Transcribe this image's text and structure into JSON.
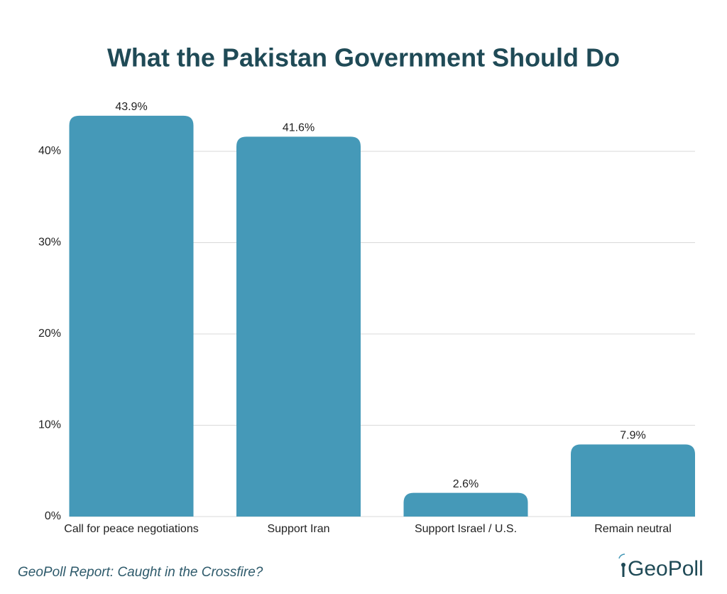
{
  "chart_data": {
    "type": "bar",
    "title": "What the Pakistan Government Should Do",
    "categories": [
      "Call for peace negotiations",
      "Support Iran",
      "Support Israel / U.S.",
      "Remain neutral"
    ],
    "values": [
      43.9,
      41.6,
      2.6,
      7.9
    ],
    "value_labels": [
      "43.9%",
      "41.6%",
      "2.6%",
      "7.9%"
    ],
    "color": "#4599b8",
    "ylim": [
      0,
      45
    ],
    "yticks": [
      {
        "value": 0,
        "label": "0%"
      },
      {
        "value": 10,
        "label": "10%"
      },
      {
        "value": 20,
        "label": "20%"
      },
      {
        "value": 30,
        "label": "30%"
      },
      {
        "value": 40,
        "label": "40%"
      }
    ],
    "grid": true,
    "source": "GeoPoll Report: Caught in the Crossfire?",
    "logo": "GeoPoll"
  }
}
